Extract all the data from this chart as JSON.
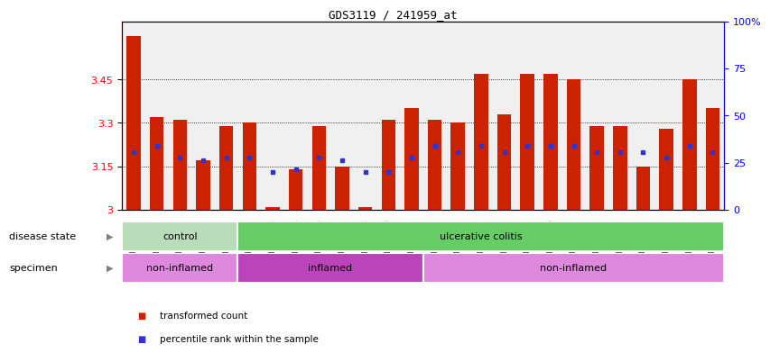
{
  "title": "GDS3119 / 241959_at",
  "samples": [
    "GSM240023",
    "GSM240024",
    "GSM240025",
    "GSM240026",
    "GSM240027",
    "GSM239617",
    "GSM239618",
    "GSM239714",
    "GSM239716",
    "GSM239717",
    "GSM239718",
    "GSM239719",
    "GSM239720",
    "GSM239723",
    "GSM239725",
    "GSM239726",
    "GSM239727",
    "GSM239729",
    "GSM239730",
    "GSM239731",
    "GSM239732",
    "GSM240022",
    "GSM240028",
    "GSM240029",
    "GSM240030",
    "GSM240031"
  ],
  "bar_values": [
    3.6,
    3.32,
    3.31,
    3.17,
    3.29,
    3.3,
    3.01,
    3.14,
    3.29,
    3.15,
    3.01,
    3.31,
    3.35,
    3.31,
    3.3,
    3.47,
    3.33,
    3.47,
    3.47,
    3.45,
    3.29,
    3.29,
    3.15,
    3.28,
    3.45,
    3.35
  ],
  "blue_values": [
    3.2,
    3.22,
    3.18,
    3.17,
    3.18,
    3.18,
    3.13,
    3.14,
    3.18,
    3.17,
    3.13,
    3.13,
    3.18,
    3.22,
    3.2,
    3.22,
    3.2,
    3.22,
    3.22,
    3.22,
    3.2,
    3.2,
    3.2,
    3.18,
    3.22,
    3.2
  ],
  "ylim_left": [
    3.0,
    3.65
  ],
  "ylim_right": [
    0,
    100
  ],
  "yticks_left": [
    3.0,
    3.15,
    3.3,
    3.45
  ],
  "ytick_labels_left": [
    "3",
    "3.15",
    "3.3",
    "3.45"
  ],
  "yticks_right": [
    0,
    25,
    50,
    75,
    100
  ],
  "ytick_labels_right": [
    "0",
    "25",
    "50",
    "75",
    "100%"
  ],
  "grid_lines": [
    3.15,
    3.3,
    3.45
  ],
  "bar_color": "#cc2200",
  "blue_color": "#3333cc",
  "disease_state_groups": [
    {
      "label": "control",
      "start": 0,
      "end": 5,
      "color": "#b8ddb8"
    },
    {
      "label": "ulcerative colitis",
      "start": 5,
      "end": 26,
      "color": "#66cc66"
    }
  ],
  "specimen_groups": [
    {
      "label": "non-inflamed",
      "start": 0,
      "end": 5,
      "color": "#dd88dd"
    },
    {
      "label": "inflamed",
      "start": 5,
      "end": 13,
      "color": "#bb44bb"
    },
    {
      "label": "non-inflamed",
      "start": 13,
      "end": 26,
      "color": "#dd88dd"
    }
  ],
  "legend_items": [
    {
      "label": "transformed count",
      "color": "#cc2200"
    },
    {
      "label": "percentile rank within the sample",
      "color": "#3333cc"
    }
  ],
  "n_samples": 26,
  "bar_width": 0.6,
  "plot_bg": "#f0f0f0",
  "fig_bg": "#ffffff"
}
